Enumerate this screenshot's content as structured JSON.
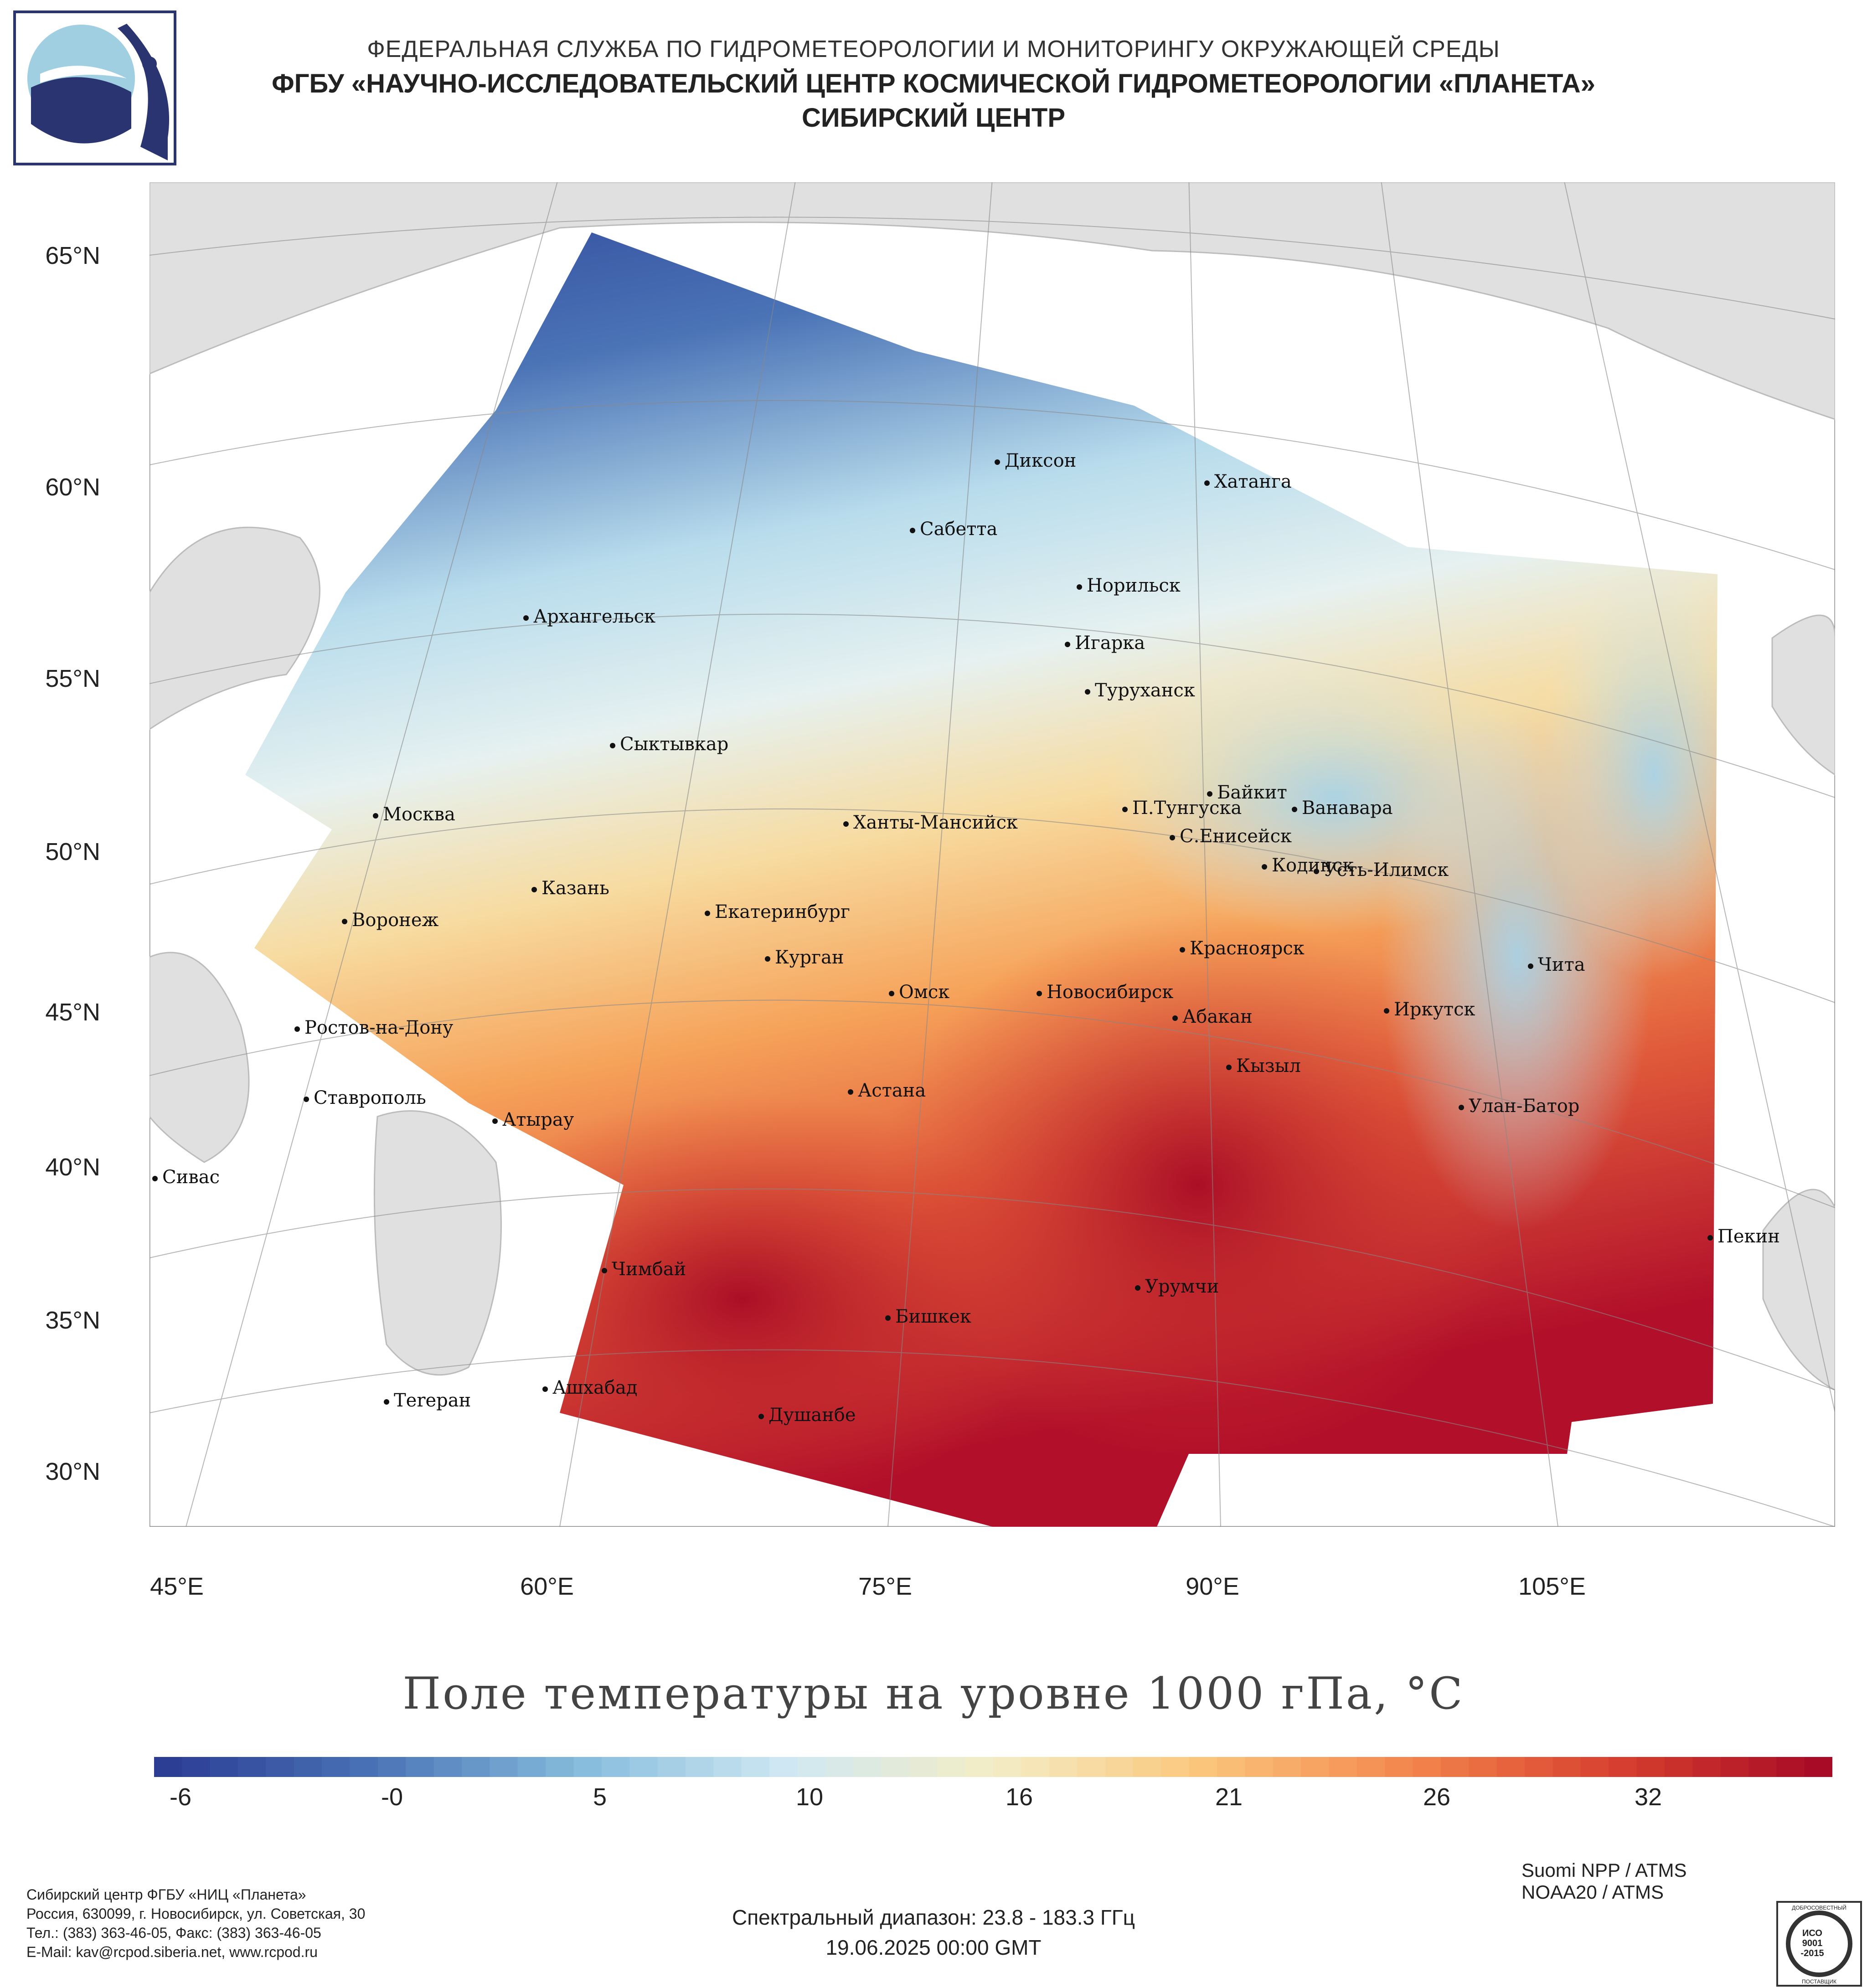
{
  "header": {
    "line1": "ФЕДЕРАЛЬНАЯ СЛУЖБА ПО ГИДРОМЕТЕОРОЛОГИИ И МОНИТОРИНГУ ОКРУЖАЮЩЕЙ СРЕДЫ",
    "line2": "ФГБУ «НАУЧНО-ИССЛЕДОВАТЕЛЬСКИЙ ЦЕНТР КОСМИЧЕСКОЙ ГИДРОМЕТЕОРОЛОГИИ «ПЛАНЕТА»",
    "line3": "СИБИРСКИЙ ЦЕНТР"
  },
  "map": {
    "title": "Поле температуры на уровне 1000 гПа, °С",
    "lat_labels": [
      "65°N",
      "60°N",
      "55°N",
      "50°N",
      "45°N",
      "40°N",
      "35°N",
      "30°N"
    ],
    "lon_labels": [
      "45°E",
      "60°E",
      "75°E",
      "90°E",
      "105°E"
    ],
    "colors": {
      "cold": "#2b3a8f",
      "cool": "#6ea6d0",
      "mild": "#dcedf3",
      "neutral": "#f2e9b8",
      "warm": "#f6a35a",
      "hot": "#b2102a",
      "land": "#e0e0e0",
      "border": "#c8c8c8"
    },
    "cities": [
      {
        "name": "Диксон"
      },
      {
        "name": "Хатанга"
      },
      {
        "name": "Сабетта"
      },
      {
        "name": "Норильск"
      },
      {
        "name": "Архангельск"
      },
      {
        "name": "Игарка"
      },
      {
        "name": "Туруханск"
      },
      {
        "name": "Сыктывкар"
      },
      {
        "name": "Байкит"
      },
      {
        "name": "П.Тунгуска"
      },
      {
        "name": "Ванавара"
      },
      {
        "name": "Москва"
      },
      {
        "name": "Ханты-Мансийск"
      },
      {
        "name": "С.Енисейск"
      },
      {
        "name": "Кодинск"
      },
      {
        "name": "Усть-Илимск"
      },
      {
        "name": "Казань"
      },
      {
        "name": "Екатеринбург"
      },
      {
        "name": "Воронеж"
      },
      {
        "name": "Красноярск"
      },
      {
        "name": "Курган"
      },
      {
        "name": "Чита"
      },
      {
        "name": "Омск"
      },
      {
        "name": "Новосибирск"
      },
      {
        "name": "Ростов-на-Дону"
      },
      {
        "name": "Иркутск"
      },
      {
        "name": "Абакан"
      },
      {
        "name": "Кызыл"
      },
      {
        "name": "Ставрополь"
      },
      {
        "name": "Астана"
      },
      {
        "name": "Улан-Батор"
      },
      {
        "name": "Атырау"
      },
      {
        "name": "Сивас"
      },
      {
        "name": "Пекин"
      },
      {
        "name": "Чимбай"
      },
      {
        "name": "Урумчи"
      },
      {
        "name": "Бишкек"
      },
      {
        "name": "Ашхабад"
      },
      {
        "name": "Теrеран"
      },
      {
        "name": "Душанбе"
      }
    ]
  },
  "colorbar": {
    "ticks": [
      "-6",
      "-0",
      "5",
      "10",
      "16",
      "21",
      "26",
      "32"
    ],
    "stops": [
      "#2c3d94",
      "#4a73b6",
      "#86bcdc",
      "#cfe8f2",
      "#f4edc6",
      "#fbc77c",
      "#f4874e",
      "#d8412f",
      "#a80b26"
    ]
  },
  "footer": {
    "org_lines": [
      "Сибирский центр ФГБУ «НИЦ «Планета»",
      "Россия, 630099, г. Новосибирск, ул. Советская, 30",
      "Тел.: (383) 363-46-05, Факс: (383) 363-46-05",
      "E-Mail: kav@rcpod.siberia.net, www.rcpod.ru"
    ],
    "satellites": [
      "Suomi NPP / ATMS",
      "NOAA20 / ATMS"
    ],
    "spectral": "Спектральный диапазон: 23.8 - 183.3 ГГц",
    "datetime": "19.06.2025 00:00 GMT"
  },
  "certificate": {
    "top": "ДОБРОСОВЕСТНЫЙ",
    "line1": "ИСО",
    "line2": "9001",
    "line3": "-2015",
    "bottom": "ПОСТАВЩИК"
  }
}
